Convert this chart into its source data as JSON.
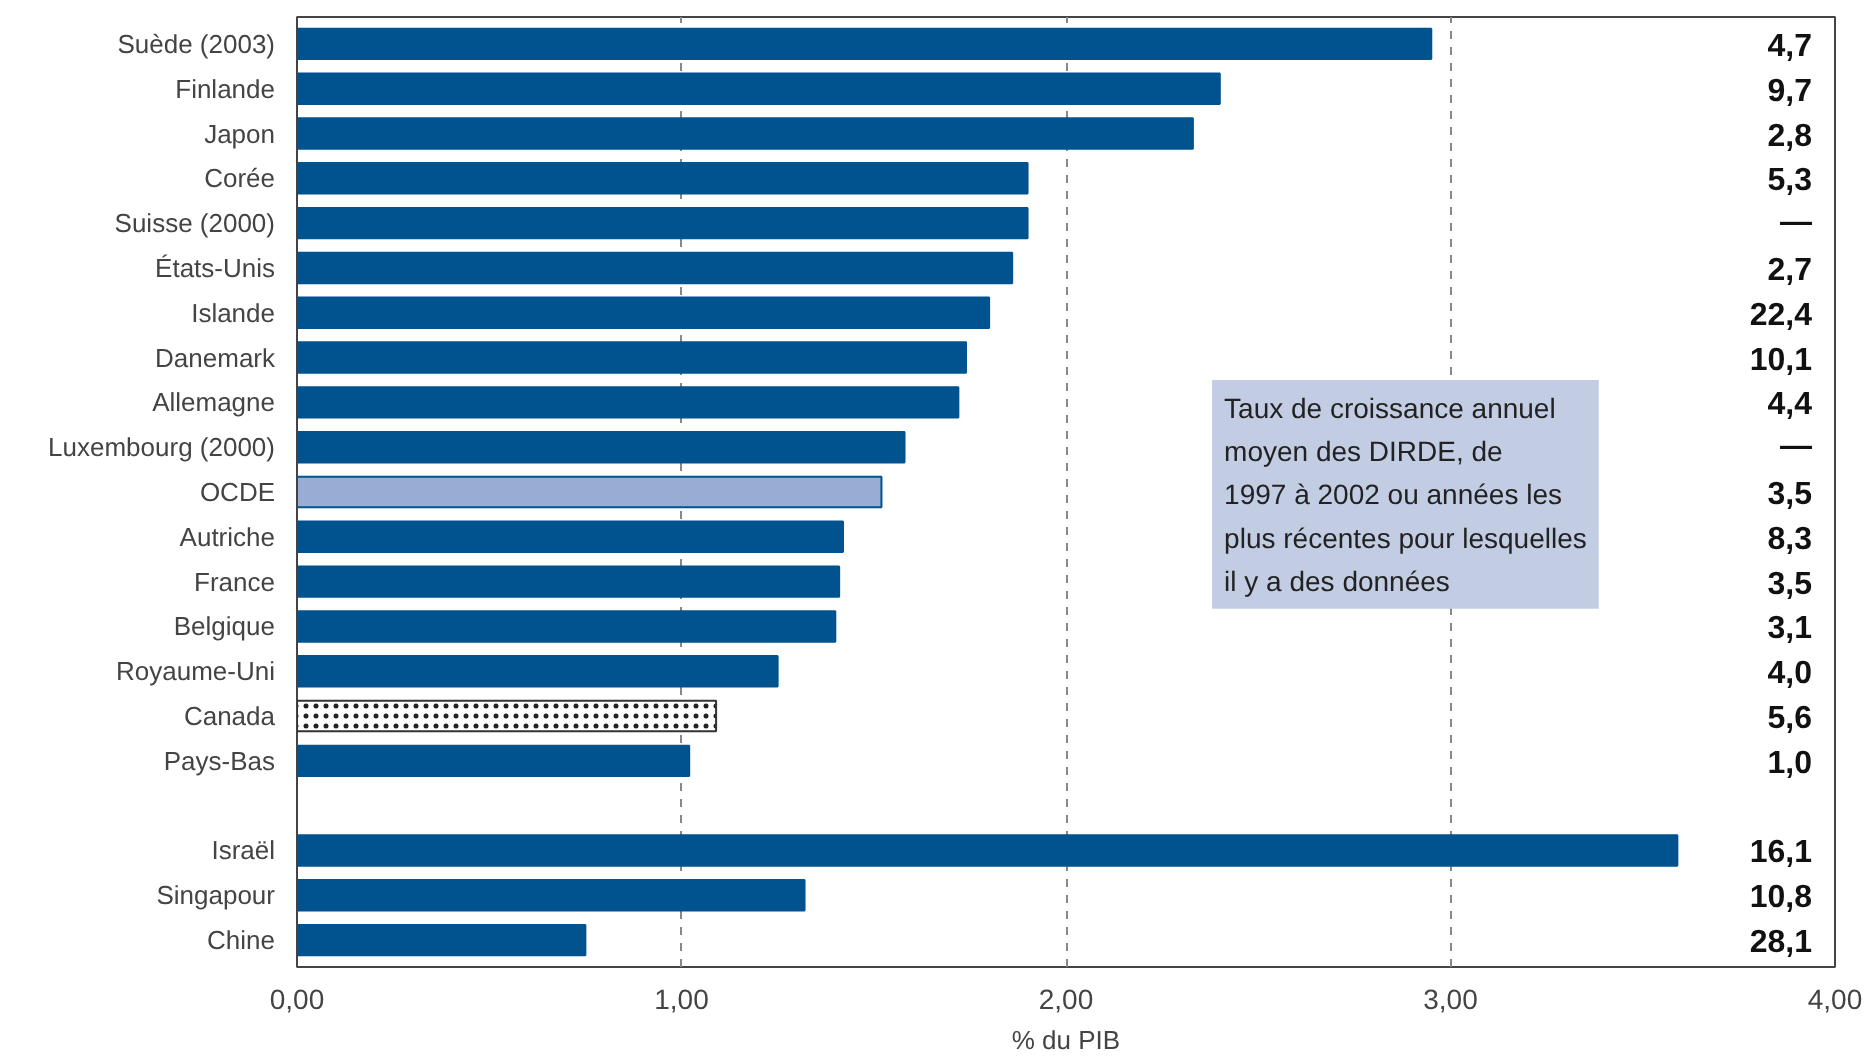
{
  "chart_data": {
    "type": "bar",
    "orientation": "horizontal",
    "xlabel": "% du PIB",
    "categories": [
      "Suède (2003)",
      "Finlande",
      "Japon",
      "Corée",
      "Suisse (2000)",
      "États-Unis",
      "Islande",
      "Danemark",
      "Allemagne",
      "Luxembourg (2000)",
      "OCDE",
      "Autriche",
      "France",
      "Belgique",
      "Royaume-Uni",
      "Canada",
      "Pays-Bas",
      null,
      "Israël",
      "Singapour",
      "Chine"
    ],
    "values": [
      2.95,
      2.4,
      2.33,
      1.9,
      1.9,
      1.86,
      1.8,
      1.74,
      1.72,
      1.58,
      1.52,
      1.42,
      1.41,
      1.4,
      1.25,
      1.09,
      1.02,
      null,
      3.59,
      1.32,
      0.75
    ],
    "colors": [
      "#00538f",
      "#00538f",
      "#00538f",
      "#00538f",
      "#00538f",
      "#00538f",
      "#00538f",
      "#00538f",
      "#00538f",
      "#00538f",
      "#99acd3",
      "#00538f",
      "#00538f",
      "#00538f",
      "#00538f",
      "#ffffff",
      "#00538f",
      null,
      "#00538f",
      "#00538f",
      "#00538f"
    ],
    "xlim": [
      0,
      4
    ],
    "xticks": [
      {
        "value": 0,
        "label": "0,00"
      },
      {
        "value": 1,
        "label": "1,00"
      },
      {
        "value": 2,
        "label": "2,00"
      },
      {
        "value": 3,
        "label": "3,00"
      },
      {
        "value": 4,
        "label": "4,00"
      }
    ],
    "grid": "x",
    "annotations": [
      "4,7",
      "9,7",
      "2,8",
      "5,3",
      "—",
      "2,7",
      "22,4",
      "10,1",
      "4,4",
      "—",
      "3,5",
      "8,3",
      "3,5",
      "3,1",
      "4,0",
      "5,6",
      "1,0",
      "16,1",
      "10,8",
      "28,1",
      "Taux de croissance annuel\nmoyen des DIRDE, de\n1997 à 2002 ou années les\nplus récentes pour lesquelles\nil y a des données"
    ]
  }
}
